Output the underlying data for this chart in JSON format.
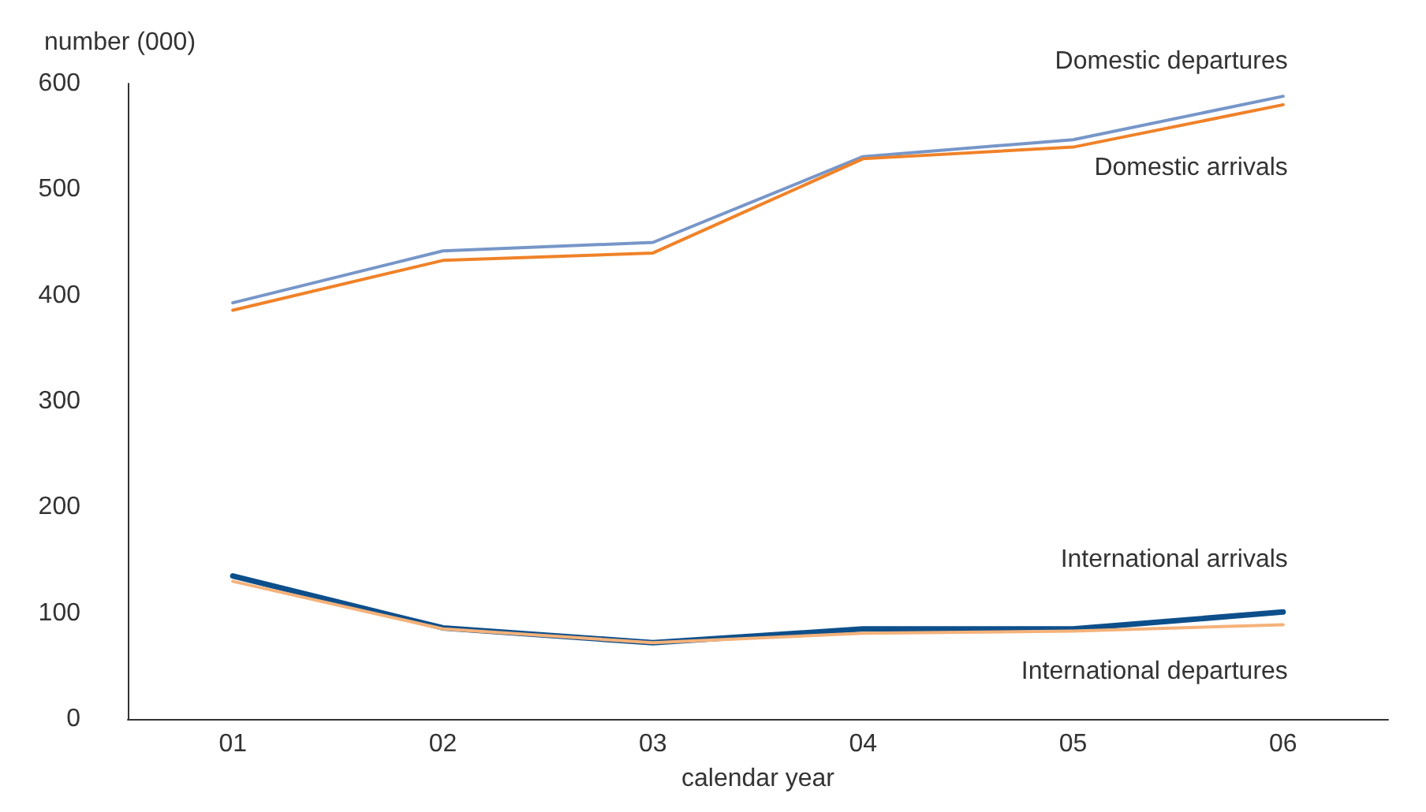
{
  "chart_data": {
    "type": "line",
    "ylabel": "number (000)",
    "xlabel": "calendar year",
    "categories": [
      "01",
      "02",
      "03",
      "04",
      "05",
      "06"
    ],
    "series": [
      {
        "name": "Domestic departures",
        "color": "#7796c8",
        "values": [
          393,
          442,
          450,
          531,
          547,
          588
        ]
      },
      {
        "name": "Domestic arrivals",
        "color": "#f08228",
        "values": [
          386,
          433,
          440,
          529,
          540,
          580
        ]
      },
      {
        "name": "International arrivals",
        "color": "#0d4f8b",
        "values": [
          135,
          86,
          72,
          85,
          85,
          101
        ]
      },
      {
        "name": "International departures",
        "color": "#f5b27a",
        "values": [
          130,
          85,
          72,
          81,
          83,
          89
        ]
      }
    ],
    "ylim": [
      0,
      600
    ],
    "yticks": [
      0,
      100,
      200,
      300,
      400,
      500,
      600
    ],
    "grid": false,
    "legend": false,
    "marker": "none",
    "line_style": "solid"
  }
}
